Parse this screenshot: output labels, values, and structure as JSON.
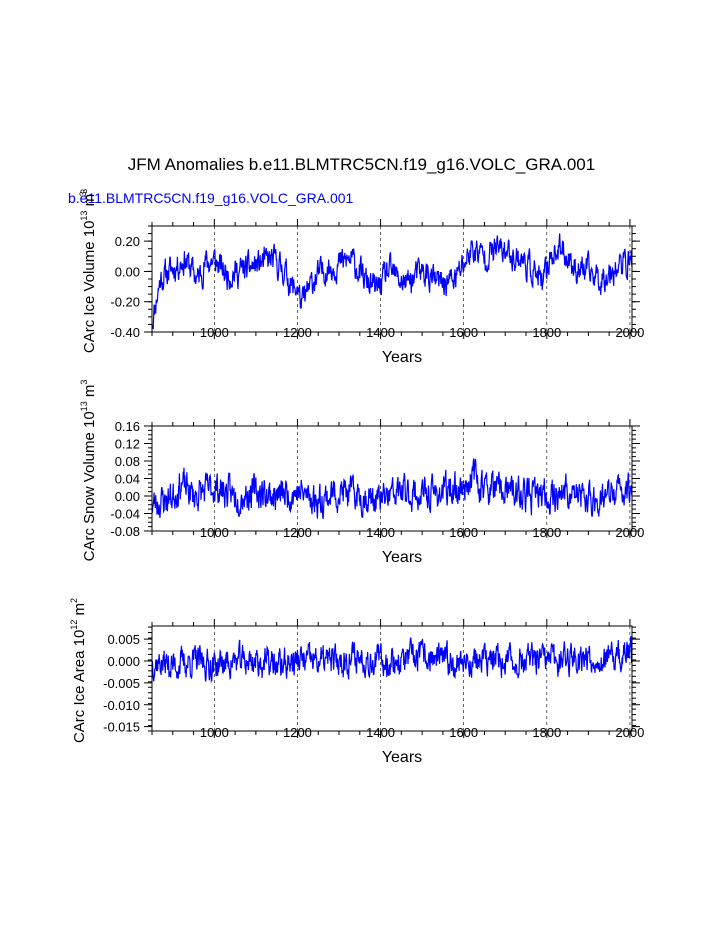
{
  "title": "JFM Anomalies b.e11.BLMTRC5CN.f19_g16.VOLC_GRA.001",
  "subtitle": "b.e11.BLMTRC5CN.f19_g16.VOLC_GRA.001",
  "colors": {
    "series": "#0000ff",
    "subtitle": "#0000ff",
    "axis": "#000000"
  },
  "chart_data": [
    {
      "type": "line",
      "name": "ice-volume",
      "ylabel": {
        "text": "CArc Ice Volume 10",
        "exp": "13",
        "unit": " m",
        "unit_exp": "3"
      },
      "ylabel_topnote": "3",
      "xlabel": "Years",
      "xlim": [
        850,
        2005
      ],
      "ylim": [
        -0.4,
        0.3
      ],
      "xticks": [
        1000,
        1200,
        1400,
        1600,
        1800,
        2000
      ],
      "xtick_labels": [
        "1000",
        "1200",
        "1400",
        "1600",
        "1800",
        "2000"
      ],
      "yticks": [
        0.2,
        0.0,
        -0.2,
        -0.4
      ],
      "ytick_labels": [
        "0.20",
        "0.00",
        "-0.20",
        "-0.40"
      ],
      "series": [
        {
          "name": "Ice Volume",
          "anchors": [
            [
              850,
              -0.33
            ],
            [
              870,
              -0.05
            ],
            [
              900,
              0.02
            ],
            [
              930,
              0.08
            ],
            [
              960,
              -0.05
            ],
            [
              980,
              0.06
            ],
            [
              1000,
              0.07
            ],
            [
              1030,
              -0.02
            ],
            [
              1060,
              0.0
            ],
            [
              1100,
              0.04
            ],
            [
              1140,
              0.08
            ],
            [
              1170,
              0.0
            ],
            [
              1190,
              -0.12
            ],
            [
              1200,
              -0.1
            ],
            [
              1210,
              -0.22
            ],
            [
              1240,
              -0.05
            ],
            [
              1270,
              0.02
            ],
            [
              1300,
              0.05
            ],
            [
              1330,
              0.08
            ],
            [
              1360,
              -0.05
            ],
            [
              1390,
              -0.12
            ],
            [
              1420,
              0.0
            ],
            [
              1460,
              -0.08
            ],
            [
              1500,
              0.0
            ],
            [
              1540,
              -0.08
            ],
            [
              1580,
              -0.05
            ],
            [
              1600,
              0.05
            ],
            [
              1620,
              0.15
            ],
            [
              1650,
              0.1
            ],
            [
              1680,
              0.15
            ],
            [
              1710,
              0.12
            ],
            [
              1740,
              0.08
            ],
            [
              1770,
              0.0
            ],
            [
              1790,
              -0.1
            ],
            [
              1810,
              0.12
            ],
            [
              1840,
              0.14
            ],
            [
              1870,
              0.02
            ],
            [
              1900,
              0.0
            ],
            [
              1930,
              -0.05
            ],
            [
              1960,
              0.02
            ],
            [
              1990,
              0.05
            ],
            [
              2005,
              0.08
            ]
          ],
          "noise": 0.075,
          "seed": 11
        }
      ]
    },
    {
      "type": "line",
      "name": "snow-volume",
      "ylabel": {
        "text": "CArc Snow Volume 10",
        "exp": "13",
        "unit": " m",
        "unit_exp": "3"
      },
      "xlabel": "Years",
      "xlim": [
        850,
        2005
      ],
      "ylim": [
        -0.08,
        0.16
      ],
      "xticks": [
        1000,
        1200,
        1400,
        1600,
        1800,
        2000
      ],
      "xtick_labels": [
        "1000",
        "1200",
        "1400",
        "1600",
        "1800",
        "2000"
      ],
      "yticks": [
        0.16,
        0.12,
        0.08,
        0.04,
        0.0,
        -0.04,
        -0.08
      ],
      "ytick_labels": [
        "0.16",
        "0.12",
        "0.08",
        "0.04",
        "0.00",
        "-0.04",
        "-0.08"
      ],
      "series": [
        {
          "name": "Snow Volume",
          "anchors": [
            [
              850,
              -0.02
            ],
            [
              900,
              0.0
            ],
            [
              920,
              0.03
            ],
            [
              950,
              0.0
            ],
            [
              1000,
              0.02
            ],
            [
              1050,
              0.0
            ],
            [
              1100,
              0.01
            ],
            [
              1150,
              0.0
            ],
            [
              1200,
              0.01
            ],
            [
              1250,
              -0.01
            ],
            [
              1300,
              0.01
            ],
            [
              1350,
              0.0
            ],
            [
              1400,
              -0.01
            ],
            [
              1450,
              0.01
            ],
            [
              1500,
              0.0
            ],
            [
              1550,
              0.01
            ],
            [
              1600,
              0.02
            ],
            [
              1620,
              0.05
            ],
            [
              1650,
              0.02
            ],
            [
              1700,
              0.01
            ],
            [
              1750,
              0.0
            ],
            [
              1800,
              0.0
            ],
            [
              1850,
              0.01
            ],
            [
              1900,
              -0.01
            ],
            [
              1950,
              0.0
            ],
            [
              2005,
              0.02
            ]
          ],
          "noise": 0.03,
          "seed": 23
        }
      ]
    },
    {
      "type": "line",
      "name": "ice-area",
      "ylabel": {
        "text": "CArc Ice Area 10",
        "exp": "12",
        "unit": " m",
        "unit_exp": "2"
      },
      "xlabel": "Years",
      "xlim": [
        850,
        2005
      ],
      "ylim": [
        -0.016,
        0.008
      ],
      "xticks": [
        1000,
        1200,
        1400,
        1600,
        1800,
        2000
      ],
      "xtick_labels": [
        "1000",
        "1200",
        "1400",
        "1600",
        "1800",
        "2000"
      ],
      "yticks": [
        0.005,
        0.0,
        -0.005,
        -0.01,
        -0.015
      ],
      "ytick_labels": [
        "0.005",
        "0.000",
        "-0.005",
        "-0.010",
        "-0.015"
      ],
      "series": [
        {
          "name": "Ice Area",
          "anchors": [
            [
              850,
              0.0
            ],
            [
              900,
              -0.001
            ],
            [
              950,
              0.0
            ],
            [
              1000,
              -0.001
            ],
            [
              1050,
              0.0
            ],
            [
              1100,
              0.0
            ],
            [
              1150,
              -0.001
            ],
            [
              1200,
              0.0
            ],
            [
              1250,
              0.0
            ],
            [
              1300,
              0.0
            ],
            [
              1350,
              0.001
            ],
            [
              1400,
              0.0
            ],
            [
              1450,
              0.0
            ],
            [
              1500,
              0.001
            ],
            [
              1550,
              0.0
            ],
            [
              1600,
              0.0
            ],
            [
              1650,
              0.0
            ],
            [
              1700,
              0.0
            ],
            [
              1750,
              0.0
            ],
            [
              1800,
              0.0
            ],
            [
              1850,
              0.001
            ],
            [
              1900,
              0.001
            ],
            [
              1950,
              0.0
            ],
            [
              2005,
              0.002
            ]
          ],
          "noise": 0.0028,
          "seed": 37
        }
      ]
    }
  ]
}
